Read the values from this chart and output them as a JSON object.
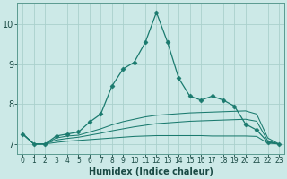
{
  "xlabel": "Humidex (Indice chaleur)",
  "background_color": "#cce9e7",
  "grid_color": "#aad0cc",
  "line_color": "#1a7a6e",
  "xlim": [
    -0.5,
    23.5
  ],
  "ylim": [
    6.75,
    10.55
  ],
  "x_ticks": [
    0,
    1,
    2,
    3,
    4,
    5,
    6,
    7,
    8,
    9,
    10,
    11,
    12,
    13,
    14,
    15,
    16,
    17,
    18,
    19,
    20,
    21,
    22,
    23
  ],
  "y_ticks": [
    7,
    8,
    9,
    10
  ],
  "series": [
    [
      7.25,
      7.0,
      7.0,
      7.2,
      7.25,
      7.3,
      7.55,
      7.75,
      8.45,
      8.88,
      9.05,
      9.55,
      10.3,
      9.55,
      8.65,
      8.2,
      8.1,
      8.2,
      8.1,
      7.95,
      7.5,
      7.35,
      7.05,
      7.0
    ],
    [
      7.25,
      7.0,
      7.0,
      7.15,
      7.2,
      7.22,
      7.3,
      7.38,
      7.48,
      7.56,
      7.62,
      7.68,
      7.72,
      7.74,
      7.76,
      7.78,
      7.79,
      7.8,
      7.81,
      7.82,
      7.83,
      7.75,
      7.15,
      7.0
    ],
    [
      7.25,
      7.0,
      7.0,
      7.1,
      7.14,
      7.17,
      7.22,
      7.27,
      7.33,
      7.38,
      7.43,
      7.47,
      7.51,
      7.53,
      7.55,
      7.57,
      7.58,
      7.59,
      7.6,
      7.61,
      7.62,
      7.57,
      7.08,
      7.0
    ],
    [
      7.25,
      7.0,
      7.0,
      7.04,
      7.07,
      7.09,
      7.11,
      7.13,
      7.15,
      7.17,
      7.19,
      7.2,
      7.21,
      7.21,
      7.21,
      7.21,
      7.21,
      7.2,
      7.2,
      7.2,
      7.2,
      7.19,
      7.02,
      7.0
    ]
  ],
  "marker": "D",
  "marker_size": 2.5,
  "tick_fontsize_x": 5.5,
  "tick_fontsize_y": 7,
  "xlabel_fontsize": 7
}
